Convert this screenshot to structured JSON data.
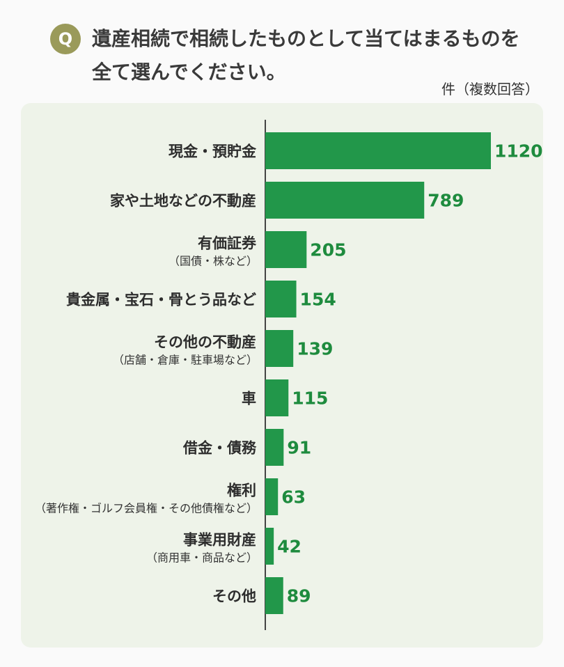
{
  "header": {
    "badge": "Q",
    "question": "遺産相続で相続したものとして当てはまるものを全て選んでください。",
    "unit_label": "件（複数回答）"
  },
  "colors": {
    "bar": "#22974a",
    "value_text": "#1e8b3e",
    "panel_bg": "#eef3e9",
    "badge": "#9a9a5a"
  },
  "chart_data": {
    "type": "bar",
    "orientation": "horizontal",
    "categories": [
      {
        "label": "現金・預貯金",
        "sub": ""
      },
      {
        "label": "家や土地などの不動産",
        "sub": ""
      },
      {
        "label": "有価証券",
        "sub": "（国債・株など）"
      },
      {
        "label": "貴金属・宝石・骨とう品など",
        "sub": ""
      },
      {
        "label": "その他の不動産",
        "sub": "（店舗・倉庫・駐車場など）"
      },
      {
        "label": "車",
        "sub": ""
      },
      {
        "label": "借金・債務",
        "sub": ""
      },
      {
        "label": "権利",
        "sub": "（著作権・ゴルフ会員権・その他債権など）"
      },
      {
        "label": "事業用財産",
        "sub": "（商用車・商品など）"
      },
      {
        "label": "その他",
        "sub": ""
      }
    ],
    "values": [
      1120,
      789,
      205,
      154,
      139,
      115,
      91,
      63,
      42,
      89
    ],
    "xlim": [
      0,
      1120
    ],
    "grid": false,
    "legend": "none"
  }
}
